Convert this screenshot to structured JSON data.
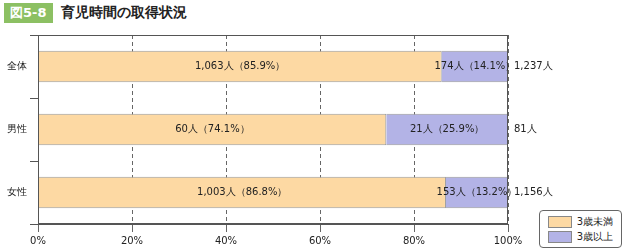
{
  "chart_data": {
    "type": "bar",
    "figure_number": "図5-8",
    "title": "育児時間の取得状況",
    "orientation": "horizontal",
    "stacked": true,
    "data_labels": true,
    "grid": true,
    "legend": "lower right",
    "categories": [
      "全体",
      "男性",
      "女性"
    ],
    "series": [
      {
        "name": "3歳未満",
        "color": "#fdd9a3",
        "values": [
          85.9,
          74.1,
          86.8
        ],
        "value_labels": [
          "1,063人（85.9%）",
          "60人（74.1%）",
          "1,003人（86.8%）"
        ]
      },
      {
        "name": "3歳以上",
        "color": "#b3b3e6",
        "values": [
          14.1,
          25.9,
          13.2
        ],
        "value_labels": [
          "174人（14.1%）",
          "21人（25.9%）",
          "153人（13.2%）"
        ]
      }
    ],
    "total_labels": [
      "1,237人",
      "81人",
      "1,156人"
    ],
    "xlim": [
      0,
      100
    ],
    "xticks": [
      {
        "value": 0,
        "label": "0%"
      },
      {
        "value": 20,
        "label": "20%"
      },
      {
        "value": 40,
        "label": "40%"
      },
      {
        "value": 60,
        "label": "60%"
      },
      {
        "value": 80,
        "label": "80%"
      },
      {
        "value": 100,
        "label": "100%"
      }
    ]
  }
}
